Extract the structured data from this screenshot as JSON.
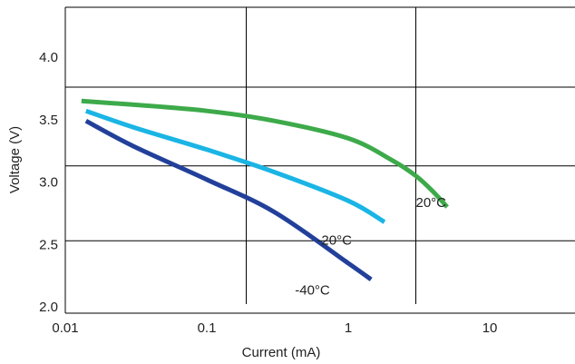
{
  "chart_data": {
    "type": "line",
    "title": "",
    "xlabel": "Current (mA)",
    "ylabel": "Voltage (V)",
    "x_scale": "log",
    "xlim": [
      0.01,
      40
    ],
    "ylim": [
      1.95,
      4.4
    ],
    "x_ticks": [
      {
        "value": 0.01,
        "label": "0.01"
      },
      {
        "value": 0.1,
        "label": "0.1"
      },
      {
        "value": 1,
        "label": "1"
      },
      {
        "value": 10,
        "label": "10"
      }
    ],
    "y_ticks": [
      {
        "value": 2.0,
        "label": "2.0"
      },
      {
        "value": 2.5,
        "label": "2.5"
      },
      {
        "value": 3.0,
        "label": "3.0"
      },
      {
        "value": 3.5,
        "label": "3.5"
      },
      {
        "value": 4.0,
        "label": "4.0"
      }
    ],
    "grid": {
      "vertical_x": [
        0.19,
        3.0
      ],
      "horizontal_y": [
        2.53,
        3.13,
        3.76
      ]
    },
    "legend": "none",
    "series": [
      {
        "name": "20°C",
        "color": "#3daa4a",
        "label_at": {
          "x": 3.0,
          "y": 2.8
        },
        "points": [
          [
            0.013,
            3.65
          ],
          [
            0.03,
            3.62
          ],
          [
            0.1,
            3.57
          ],
          [
            0.3,
            3.49
          ],
          [
            1.0,
            3.35
          ],
          [
            2.0,
            3.18
          ],
          [
            3.0,
            3.05
          ],
          [
            4.0,
            2.92
          ],
          [
            5.0,
            2.8
          ]
        ]
      },
      {
        "name": "-20°C",
        "color": "#1ab5e5",
        "label_at": {
          "x": 0.6,
          "y": 2.5
        },
        "points": [
          [
            0.014,
            3.57
          ],
          [
            0.03,
            3.44
          ],
          [
            0.1,
            3.26
          ],
          [
            0.3,
            3.08
          ],
          [
            1.0,
            2.85
          ],
          [
            1.8,
            2.68
          ]
        ]
      },
      {
        "name": "-40°C",
        "color": "#22409a",
        "label_at": {
          "x": 0.42,
          "y": 2.1
        },
        "points": [
          [
            0.014,
            3.49
          ],
          [
            0.03,
            3.29
          ],
          [
            0.1,
            3.02
          ],
          [
            0.3,
            2.76
          ],
          [
            1.0,
            2.35
          ],
          [
            1.45,
            2.22
          ]
        ]
      }
    ]
  }
}
